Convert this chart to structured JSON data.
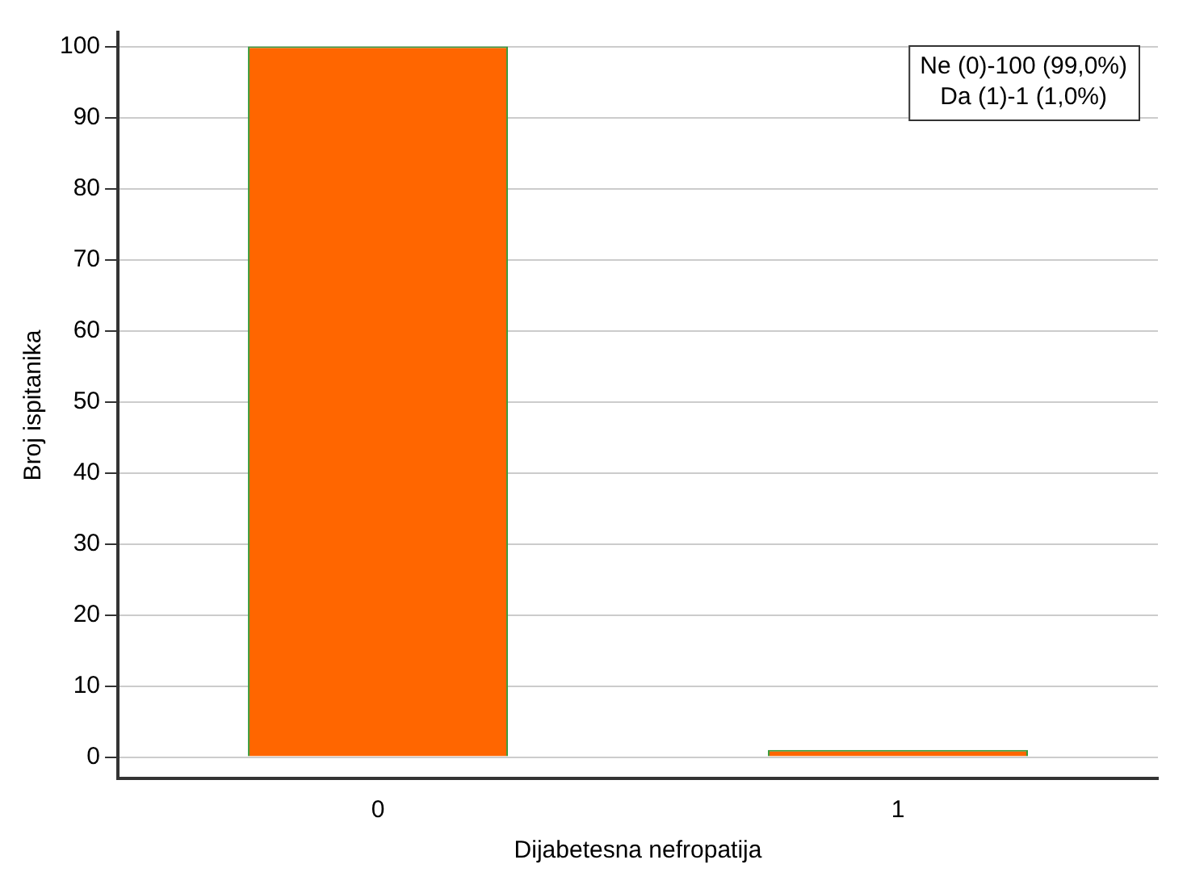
{
  "chart_data": {
    "type": "bar",
    "xlabel": "Dijabetesna nefropatija",
    "ylabel": "Broj ispitanika",
    "categories": [
      "0",
      "1"
    ],
    "series": [
      {
        "color": "#ff6600",
        "values": [
          100,
          1
        ]
      }
    ],
    "ylim": [
      -3,
      102
    ],
    "yticks": [
      0,
      10,
      20,
      30,
      40,
      50,
      60,
      70,
      80,
      90,
      100
    ],
    "grid": "y",
    "annotations": [
      "Ne (0)-100 (99,0%)",
      "Da (1)-1 (1,0%)"
    ]
  }
}
